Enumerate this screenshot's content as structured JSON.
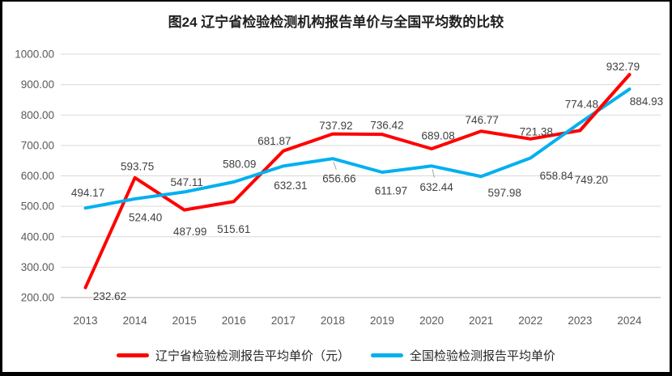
{
  "chart_data": {
    "type": "line",
    "title": "图24 辽宁省检验检测机构报告单价与全国平均数的比较",
    "categories": [
      "2013",
      "2014",
      "2015",
      "2016",
      "2017",
      "2018",
      "2019",
      "2020",
      "2021",
      "2022",
      "2023",
      "2024"
    ],
    "series": [
      {
        "name": "辽宁省检验检测报告平均单价（元）",
        "color": "#FF0000",
        "values": [
          232.62,
          593.75,
          487.99,
          515.61,
          681.87,
          737.92,
          736.42,
          689.08,
          746.77,
          721.38,
          749.2,
          932.79
        ],
        "labels": [
          "232.62",
          "593.75",
          "487.99",
          "515.61",
          "681.87",
          "737.92",
          "736.42",
          "689.08",
          "746.77",
          "721.38",
          "749.20",
          "932.79"
        ],
        "label_offsets": [
          [
            30,
            11
          ],
          [
            3,
            -14
          ],
          [
            7,
            27
          ],
          [
            0,
            34
          ],
          [
            -11,
            -12
          ],
          [
            4,
            -10
          ],
          [
            6,
            -11
          ],
          [
            8,
            -16
          ],
          [
            1,
            -14
          ],
          [
            7,
            -9
          ],
          [
            14,
            61
          ],
          [
            -8,
            -10
          ]
        ]
      },
      {
        "name": "全国检验检测报告平均单价",
        "color": "#00B0F0",
        "values": [
          494.17,
          524.4,
          547.11,
          580.09,
          632.31,
          656.66,
          611.97,
          632.44,
          597.98,
          658.84,
          774.48,
          884.93
        ],
        "labels": [
          "494.17",
          "524.40",
          "547.11",
          "580.09",
          "632.31",
          "656.66",
          "611.97",
          "632.44",
          "597.98",
          "658.84",
          "774.48",
          "884.93"
        ],
        "label_offsets": [
          [
            3,
            -19
          ],
          [
            13,
            23
          ],
          [
            3,
            -12
          ],
          [
            7,
            -22
          ],
          [
            9,
            24
          ],
          [
            8,
            25
          ],
          [
            11,
            23
          ],
          [
            6,
            26
          ],
          [
            29,
            20
          ],
          [
            32,
            22
          ],
          [
            2,
            -23
          ],
          [
            21,
            15
          ]
        ]
      }
    ],
    "ylim": [
      200,
      1000
    ],
    "yticks": {
      "values": [
        1000,
        900,
        800,
        700,
        600,
        500,
        400,
        300,
        200
      ],
      "labels": [
        "1000.00",
        "900.00",
        "800.00",
        "700.00",
        "600.00",
        "500.00",
        "400.00",
        "300.00",
        "200.00"
      ]
    },
    "grid": true,
    "legend_position": "bottom",
    "label_leaders": [
      {
        "series": 1,
        "point": 5
      },
      {
        "series": 1,
        "point": 7
      }
    ],
    "overlay_segment": {
      "series": 0,
      "from": 10,
      "to": 11
    }
  },
  "colors": {
    "grid": "#D9D9D9",
    "axis_line": "#BFBFBF",
    "tick_text": "#595959",
    "data_label_text": "#404040",
    "leader_line": "#A6A6A6",
    "frame_border": "#000000",
    "series_red": "#FF0000",
    "series_blue": "#00B0F0"
  }
}
